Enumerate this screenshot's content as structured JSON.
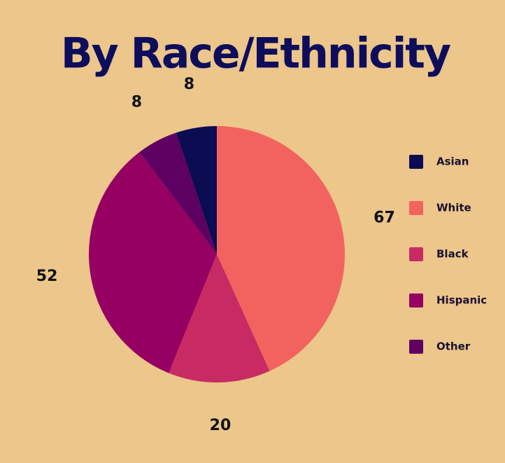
{
  "chart_data": {
    "type": "pie",
    "title": "By Race/Ethnicity",
    "categories": [
      "Asian",
      "White",
      "Black",
      "Hispanic",
      "Other"
    ],
    "values": [
      8,
      67,
      20,
      52,
      8
    ],
    "colors": [
      "#0c0c52",
      "#f2635f",
      "#c82b63",
      "#960062",
      "#5e0062"
    ],
    "legend": "right"
  }
}
